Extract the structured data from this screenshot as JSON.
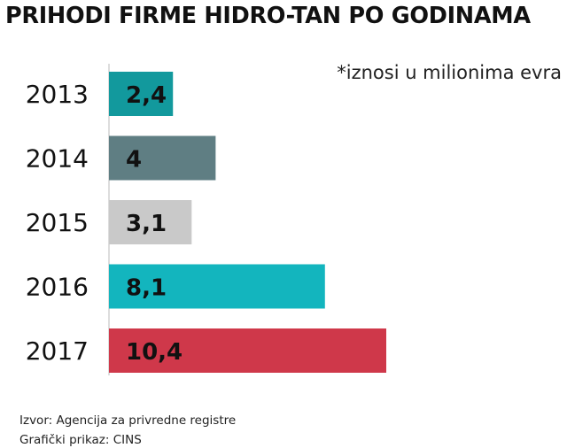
{
  "chart_data": {
    "type": "bar",
    "orientation": "horizontal",
    "title": "PRIHODI FIRME HIDRO-TAN PO GODINAMA",
    "note": "*iznosi u milionima evra",
    "categories": [
      "2013",
      "2014",
      "2015",
      "2016",
      "2017"
    ],
    "values": [
      2.4,
      4,
      3.1,
      8.1,
      10.4
    ],
    "value_labels": [
      "2,4",
      "4",
      "3,1",
      "8,1",
      "10,4"
    ],
    "colors": [
      "#12999d",
      "#5f7e83",
      "#c9c9c9",
      "#13b5be",
      "#cf384a"
    ],
    "xlim": [
      0,
      10.4
    ],
    "grid": false,
    "legend": "none"
  },
  "footer": {
    "source": "Izvor: Agencija za privredne registre",
    "credit": "Grafički prikaz: CINS"
  }
}
